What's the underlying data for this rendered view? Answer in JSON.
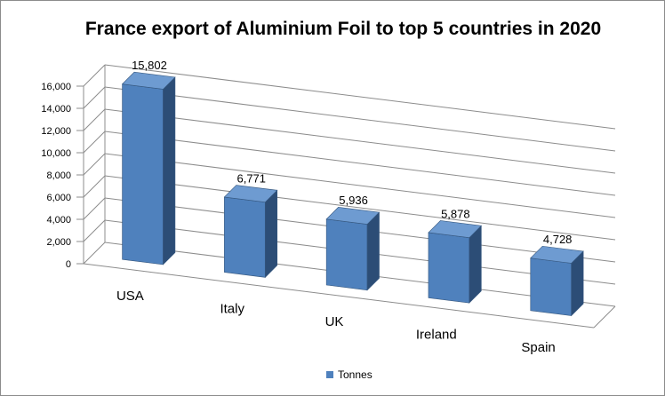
{
  "chart_data": {
    "type": "bar",
    "title": "France export of Aluminium Foil to top 5 countries in 2020",
    "categories": [
      "USA",
      "Italy",
      "UK",
      "Ireland",
      "Spain"
    ],
    "series": [
      {
        "name": "Tonnes",
        "values": [
          15802,
          6771,
          5936,
          5878,
          4728
        ]
      }
    ],
    "data_labels": [
      "15,802",
      "6,771",
      "5,936",
      "5,878",
      "4,728"
    ],
    "y_ticks": [
      "0",
      "2,000",
      "4,000",
      "6,000",
      "8,000",
      "10,000",
      "12,000",
      "14,000",
      "16,000"
    ],
    "ylim": [
      0,
      16000
    ],
    "grid": true,
    "legend_position": "bottom",
    "style": "3d-column",
    "colors": {
      "front": "#4f81bd",
      "side": "#2c4d76",
      "top": "#6e9bd1",
      "grid": "#8c8c8c"
    }
  }
}
